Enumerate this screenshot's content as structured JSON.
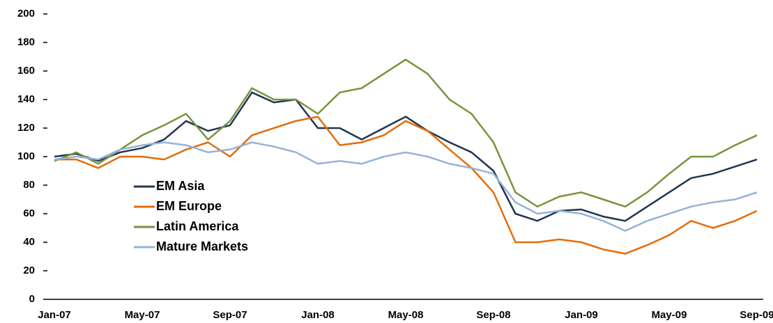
{
  "chart_data": {
    "type": "line",
    "categories": [
      "Jan-07",
      null,
      null,
      null,
      "May-07",
      null,
      null,
      null,
      "Sep-07",
      null,
      null,
      null,
      "Jan-08",
      null,
      null,
      null,
      "May-08",
      null,
      null,
      null,
      "Sep-08",
      null,
      null,
      null,
      "Jan-09",
      null,
      null,
      null,
      "May-09",
      null,
      null,
      null,
      "Sep-09"
    ],
    "series": [
      {
        "name": "EM Asia",
        "color": "#1f3552",
        "values": [
          100,
          102,
          97,
          103,
          106,
          112,
          125,
          118,
          122,
          145,
          138,
          140,
          120,
          120,
          112,
          120,
          128,
          118,
          110,
          103,
          90,
          60,
          55,
          62,
          63,
          58,
          55,
          65,
          75,
          85,
          88,
          93,
          98
        ]
      },
      {
        "name": "EM Europe",
        "color": "#e46c0a",
        "values": [
          98,
          98,
          92,
          100,
          100,
          98,
          105,
          110,
          100,
          115,
          120,
          125,
          128,
          108,
          110,
          115,
          125,
          118,
          105,
          92,
          75,
          40,
          40,
          42,
          40,
          35,
          32,
          38,
          45,
          55,
          50,
          55,
          62
        ]
      },
      {
        "name": "Latin America",
        "color": "#77933c",
        "values": [
          97,
          103,
          95,
          105,
          115,
          122,
          130,
          112,
          125,
          148,
          140,
          140,
          130,
          145,
          148,
          158,
          168,
          158,
          140,
          130,
          110,
          75,
          65,
          72,
          75,
          70,
          65,
          75,
          88,
          100,
          100,
          108,
          115
        ]
      },
      {
        "name": "Mature Markets",
        "color": "#95b3d7",
        "values": [
          98,
          100,
          98,
          105,
          108,
          110,
          108,
          103,
          105,
          110,
          107,
          103,
          95,
          97,
          95,
          100,
          103,
          100,
          95,
          92,
          88,
          68,
          60,
          62,
          60,
          55,
          48,
          55,
          60,
          65,
          68,
          70,
          75
        ]
      }
    ],
    "ylim": [
      0,
      200
    ],
    "yticks": [
      0,
      20,
      40,
      60,
      80,
      100,
      120,
      140,
      160,
      180,
      200
    ],
    "grid": false,
    "legend": "lower-left"
  }
}
